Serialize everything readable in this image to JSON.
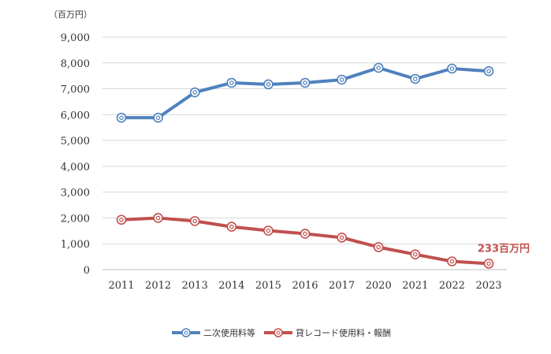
{
  "chart_data": {
    "type": "line",
    "unit_label": "（百万円）",
    "categories": [
      "2011",
      "2012",
      "2013",
      "2014",
      "2015",
      "2016",
      "2017",
      "2020",
      "2021",
      "2022",
      "2023"
    ],
    "ylim": [
      0,
      9000
    ],
    "yticks": [
      0,
      1000,
      2000,
      3000,
      4000,
      5000,
      6000,
      7000,
      8000,
      9000
    ],
    "ytick_labels": [
      "0",
      "1,000",
      "2,000",
      "3,000",
      "4,000",
      "5,000",
      "6,000",
      "7,000",
      "8,000",
      "9,000"
    ],
    "grid": true,
    "legend_position": "bottom",
    "series": [
      {
        "name": "二次使用料等",
        "color": "#4f81bd",
        "values": [
          5880,
          5880,
          6860,
          7230,
          7170,
          7230,
          7350,
          7810,
          7380,
          7780,
          7680
        ]
      },
      {
        "name": "貸レコード使用料・報酬",
        "color": "#c0504d",
        "values": [
          1930,
          2000,
          1880,
          1660,
          1510,
          1390,
          1240,
          870,
          590,
          320,
          233
        ]
      }
    ],
    "annotations": [
      {
        "text": "233百万円",
        "series": 1,
        "index": 10,
        "color": "#c0504d"
      }
    ]
  }
}
